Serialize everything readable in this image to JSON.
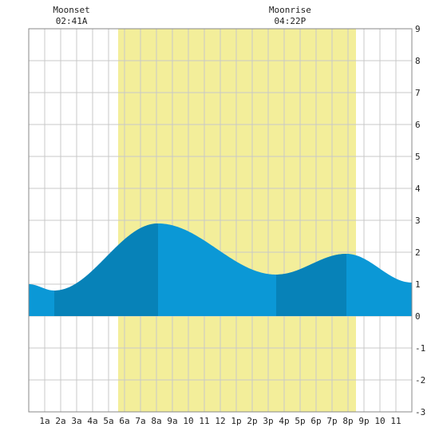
{
  "chart_data": {
    "type": "area",
    "x_unit": "hour of day",
    "xlim": [
      0,
      24
    ],
    "ylim": [
      -3,
      9
    ],
    "y_ticks": [
      9,
      8,
      7,
      6,
      5,
      4,
      3,
      2,
      1,
      0,
      -1,
      -2,
      -3
    ],
    "x_tick_labels": [
      "1a",
      "2a",
      "3a",
      "4a",
      "5a",
      "6a",
      "7a",
      "8a",
      "9a",
      "10",
      "11",
      "12",
      "1p",
      "2p",
      "3p",
      "4p",
      "5p",
      "6p",
      "7p",
      "8p",
      "9p",
      "10",
      "11"
    ],
    "grid": true,
    "moon_events": [
      {
        "label": "Moonset",
        "time": "02:41A",
        "hour": 2.68
      },
      {
        "label": "Moonrise",
        "time": "04:22P",
        "hour": 16.37
      }
    ],
    "daylight": {
      "start_hour": 5.6,
      "end_hour": 20.5
    },
    "tide_series": {
      "x": [
        0,
        1.6,
        8.1,
        15.5,
        19.9,
        24
      ],
      "y": [
        1.0,
        0.8,
        2.9,
        1.3,
        1.95,
        1.05
      ]
    },
    "tide_bands": [
      {
        "from": 1.6,
        "to": 8.1,
        "shade": "dark"
      },
      {
        "from": 15.5,
        "to": 19.9,
        "shade": "dark"
      }
    ]
  },
  "colors": {
    "tide_light": "#0b98d6",
    "tide_dark": "#0782b8",
    "daylight": "#f3ee9a",
    "grid": "#c8c8c8",
    "border": "#888888"
  }
}
